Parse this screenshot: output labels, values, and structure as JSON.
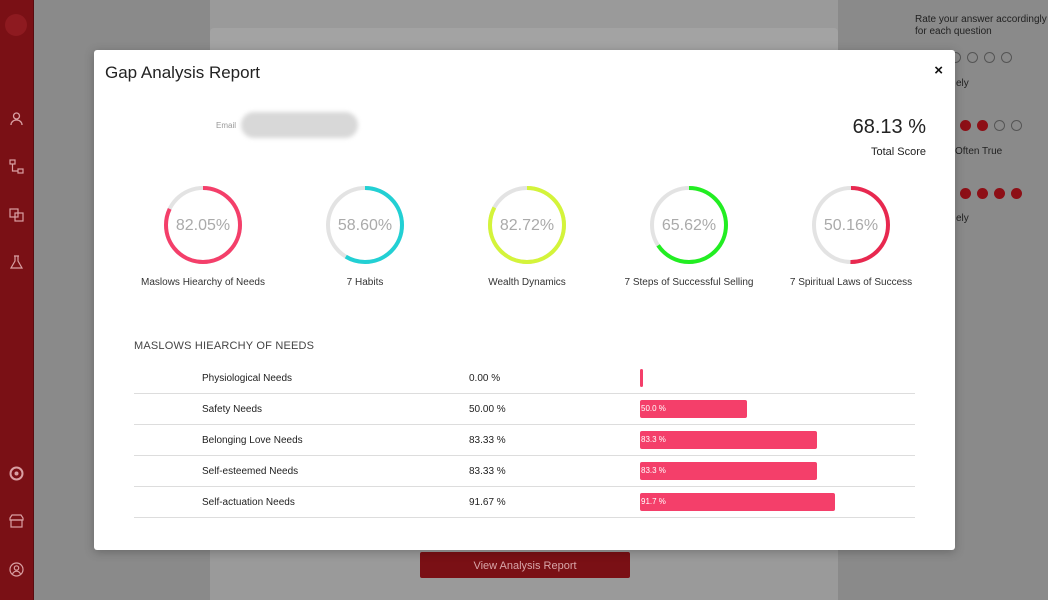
{
  "sidebar": {
    "icons": [
      "user-icon",
      "hierarchy-icon",
      "layers-icon",
      "flask-icon",
      "target-icon",
      "store-icon",
      "profile-icon"
    ]
  },
  "background": {
    "instructions": "Rate your answer accordingly for each question",
    "frag_rarely_1": "ely",
    "frag_often_true": "Often True",
    "frag_rarely_2": "ely",
    "view_report_label": "View Analysis Report",
    "accent_color": "#8d0f16"
  },
  "modal": {
    "title": "Gap Analysis Report",
    "close_label": "×",
    "email_label": "Email",
    "total_score_value": "68.13 %",
    "total_score_label": "Total Score"
  },
  "gauges": [
    {
      "label": "Maslows Hiearchy of Needs",
      "value_text": "82.05%",
      "percent": 82.05,
      "color": "#f43f6a"
    },
    {
      "label": "7 Habits",
      "value_text": "58.60%",
      "percent": 58.6,
      "color": "#22d0d4"
    },
    {
      "label": "Wealth Dynamics",
      "value_text": "82.72%",
      "percent": 82.72,
      "color": "#d4f43a"
    },
    {
      "label": "7 Steps of Successful Selling",
      "value_text": "65.62%",
      "percent": 65.62,
      "color": "#22ee22"
    },
    {
      "label": "7 Spiritual Laws of Success",
      "value_text": "50.16%",
      "percent": 50.16,
      "color": "#e8284f"
    }
  ],
  "section": {
    "title": "MASLOWS HIEARCHY OF NEEDS",
    "rows": [
      {
        "name": "Physiological Needs",
        "pct_text": "0.00 %",
        "bar_text": "",
        "percent": 0
      },
      {
        "name": "Safety Needs",
        "pct_text": "50.00 %",
        "bar_text": "50.0 %",
        "percent": 50
      },
      {
        "name": "Belonging Love Needs",
        "pct_text": "83.33 %",
        "bar_text": "83.3 %",
        "percent": 83.3
      },
      {
        "name": "Self-esteemed Needs",
        "pct_text": "83.33 %",
        "bar_text": "83.3 %",
        "percent": 83.3
      },
      {
        "name": "Self-actuation Needs",
        "pct_text": "91.67 %",
        "bar_text": "91.7 %",
        "percent": 91.7
      }
    ]
  }
}
